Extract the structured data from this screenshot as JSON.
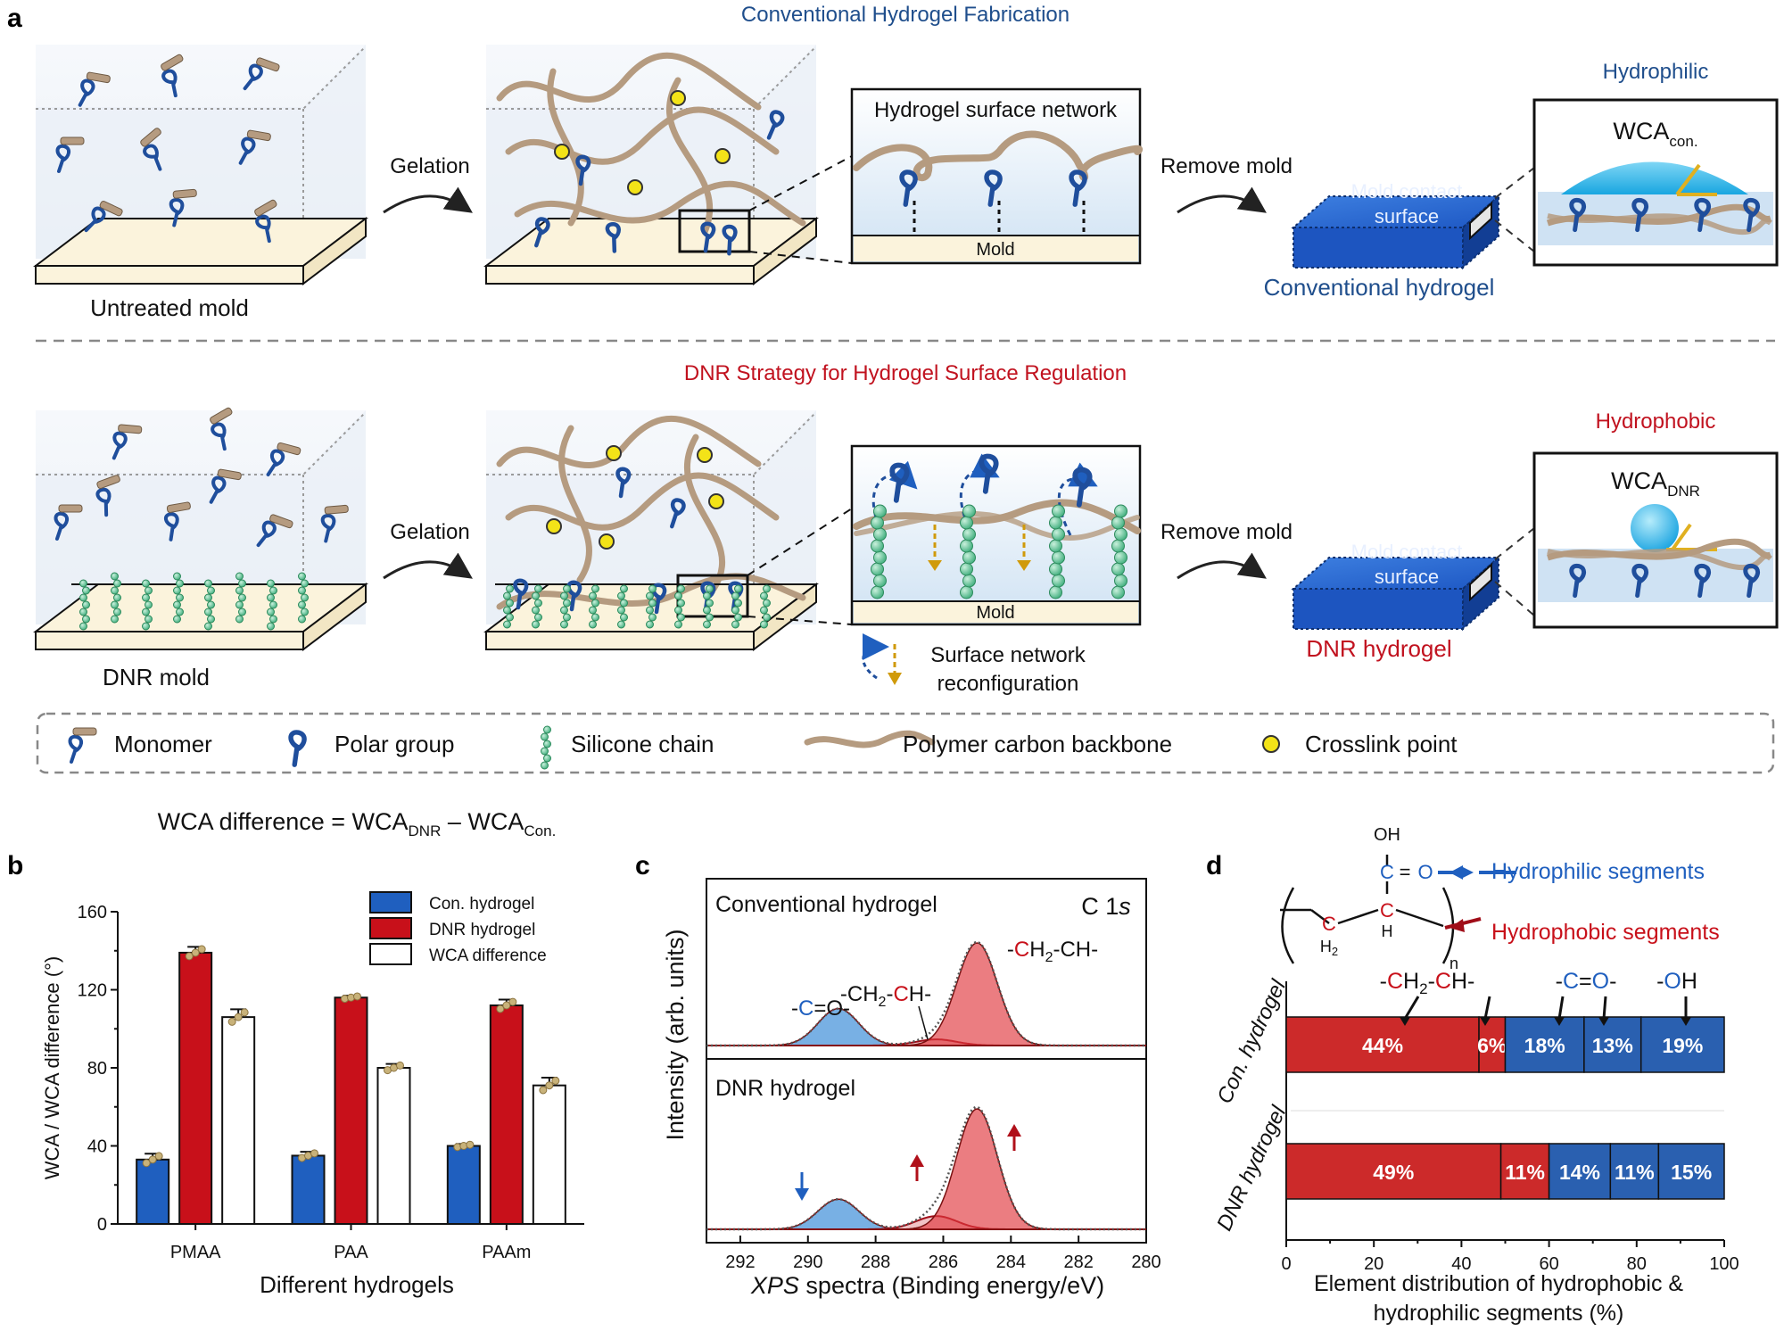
{
  "panel_labels": {
    "a": "a",
    "b": "b",
    "c": "c",
    "d": "d"
  },
  "panel_a": {
    "conv_title": "Conventional Hydrogel Fabrication",
    "dnr_title": "DNR Strategy for Hydrogel Surface Regulation",
    "untreated_mold": "Untreated mold",
    "dnr_mold": "DNR mold",
    "gelation": "Gelation",
    "remove_mold": "Remove mold",
    "inset_title": "Hydrogel surface network",
    "mold": "Mold",
    "mold_contact_1": "Mold contact",
    "mold_contact_2": "surface",
    "conventional_hydrogel": "Conventional hydrogel",
    "dnr_hydrogel": "DNR hydrogel",
    "hydrophilic": "Hydrophilic",
    "hydrophobic": "Hydrophobic",
    "wca": "WCA",
    "wca_con_sub": "con.",
    "wca_dnr_sub": "DNR",
    "reconfig_1": "Surface network",
    "reconfig_2": "reconfiguration",
    "legend": {
      "monomer": "Monomer",
      "polar": "Polar group",
      "silicone": "Silicone chain",
      "backbone": "Polymer carbon backbone",
      "crosslink": "Crosslink point"
    },
    "colors": {
      "blue": "#1f4e9c",
      "tan": "#b59b80",
      "green": "#63c59a",
      "yellow": "#f3e318",
      "red": "#c1121f",
      "mold": "#fbf3dc"
    }
  },
  "panel_b_text": {
    "eq_1": "WCA difference = WCA",
    "eq_sub1": "DNR",
    "eq_2": " – WCA",
    "eq_sub2": "Con."
  },
  "panel_c_text": {
    "ylabel": "Intensity (arb. units)",
    "xlabel_italic": "XPS",
    "xlabel_rest": " spectra (Binding energy/eV)",
    "c1s_c": "C 1",
    "c1s_s": "s",
    "top_label": "Conventional hydrogel",
    "bottom_label": "DNR hydrogel"
  },
  "panel_d_text": {
    "hydrophilic": "Hydrophilic segments",
    "hydrophobic": "Hydrophobic segments",
    "oh": "OH",
    "o": "O",
    "c": "C",
    "eq": "=",
    "h": "H",
    "h2": "H",
    "h2_sub": "2",
    "n": "n",
    "xlabel_1": "Element distribution of hydrophobic &",
    "xlabel_2": "hydrophilic segments (%)"
  },
  "chart_data": [
    {
      "id": "b",
      "type": "bar",
      "ylabel": "WCA / WCA difference (°)",
      "xlabel": "Different hydrogels",
      "categories": [
        "PMAA",
        "PAA",
        "PAAm"
      ],
      "ylim": [
        0,
        160
      ],
      "yticks": [
        0,
        40,
        80,
        120,
        160
      ],
      "series": [
        {
          "name": "Con. hydrogel",
          "color": "#1f5fbf",
          "values": [
            33,
            35,
            40
          ],
          "errors": [
            3,
            2,
            1
          ]
        },
        {
          "name": "DNR hydrogel",
          "color": "#c8101a",
          "values": [
            139,
            116,
            112
          ],
          "errors": [
            3,
            1,
            3
          ]
        },
        {
          "name": "WCA difference",
          "color": "#ffffff",
          "values": [
            106,
            80,
            71
          ],
          "errors": [
            4,
            2,
            4
          ]
        }
      ],
      "legend_position": "top-right"
    },
    {
      "id": "c",
      "type": "line",
      "xlabel": "XPS spectra (Binding energy/eV)",
      "ylabel": "Intensity (arb. units)",
      "xlim": [
        293,
        280
      ],
      "xticks": [
        292,
        290,
        288,
        286,
        284,
        282,
        280
      ],
      "subpanels": [
        {
          "name": "Conventional hydrogel",
          "peaks": [
            {
              "label": "-C=O-",
              "center": 289.1,
              "height": 0.36,
              "color": "#2f86d6"
            },
            {
              "label": "-CH2-CH-",
              "center": 286.2,
              "height": 0.06,
              "color": "#c8101a"
            },
            {
              "label": "-CH2-CH-",
              "center": 285.0,
              "height": 1.0,
              "color": "#e0383e"
            }
          ]
        },
        {
          "name": "DNR hydrogel",
          "peaks": [
            {
              "center": 289.1,
              "height": 0.25,
              "color": "#2f86d6"
            },
            {
              "center": 286.2,
              "height": 0.11,
              "color": "#c8101a"
            },
            {
              "center": 285.0,
              "height": 1.0,
              "color": "#e0383e"
            }
          ]
        }
      ],
      "annotations": [
        "-C=O-",
        "-CH2-CH-",
        "-CH2-CH-",
        "C 1s"
      ]
    },
    {
      "id": "d",
      "type": "bar",
      "orientation": "horizontal-stacked",
      "xlabel": "Element distribution of hydrophobic & hydrophilic segments (%)",
      "xlim": [
        0,
        100
      ],
      "xticks": [
        0,
        20,
        40,
        60,
        80,
        100
      ],
      "categories": [
        "Con. hydrogel",
        "DNR hydrogel"
      ],
      "segment_names": [
        "-CH2-",
        "-CH-",
        "-C=",
        "=O-",
        "-OH"
      ],
      "rows": [
        {
          "name": "Con. hydrogel",
          "values": [
            44,
            6,
            18,
            13,
            19
          ],
          "colors": [
            "#cc2a2a",
            "#cc2a2a",
            "#2a60b0",
            "#2a60b0",
            "#2a60b0"
          ]
        },
        {
          "name": "DNR hydrogel",
          "values": [
            49,
            11,
            14,
            11,
            15
          ],
          "colors": [
            "#cc2a2a",
            "#cc2a2a",
            "#2a60b0",
            "#2a60b0",
            "#2a60b0"
          ]
        }
      ],
      "labels": [
        [
          "44%",
          "6%",
          "18%",
          "13%",
          "19%"
        ],
        [
          "49%",
          "11%",
          "14%",
          "11%",
          "15%"
        ]
      ]
    }
  ]
}
